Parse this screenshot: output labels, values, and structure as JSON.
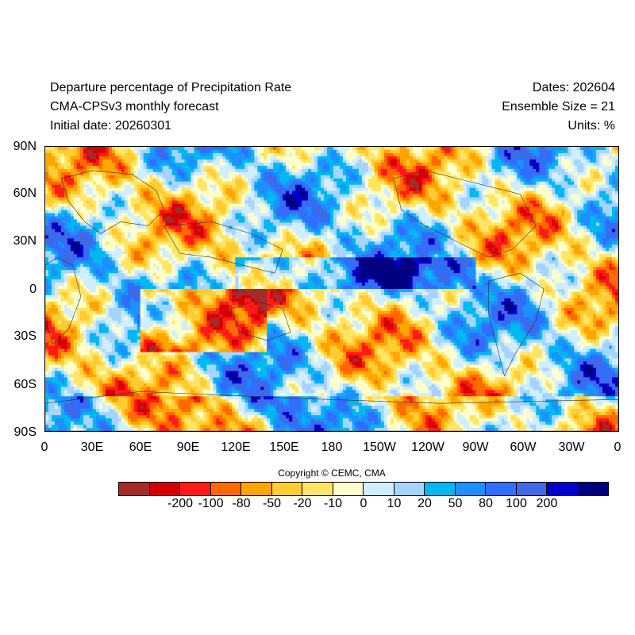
{
  "header": {
    "title": "Departure percentage of Precipitation Rate",
    "model": "CMA-CPSv3 monthly forecast",
    "initial_date": "Initial date: 20260301",
    "dates": "Dates: 202604",
    "ensemble": "Ensemble Size = 21",
    "units": "Units: %"
  },
  "lat_labels": [
    "90N",
    "60N",
    "30N",
    "0",
    "30S",
    "60S",
    "90S"
  ],
  "lon_labels": [
    "0",
    "30E",
    "60E",
    "90E",
    "120E",
    "150E",
    "180",
    "150W",
    "120W",
    "90W",
    "60W",
    "30W",
    "0"
  ],
  "copyright": "Copyright © CEMC, CMA",
  "colorbar": {
    "labels": [
      "-200",
      "-100",
      "-80",
      "-50",
      "-20",
      "-10",
      "0",
      "10",
      "20",
      "50",
      "80",
      "100",
      "200"
    ],
    "colors": [
      "#a52a2a",
      "#d40000",
      "#ff1a1a",
      "#ff6a00",
      "#ffa500",
      "#ffcc33",
      "#ffe566",
      "#ffffcc",
      "#cfefff",
      "#a6d4ff",
      "#00b8f0",
      "#1e90ff",
      "#2f6fff",
      "#4169e1",
      "#0000cd",
      "#000080"
    ]
  }
}
